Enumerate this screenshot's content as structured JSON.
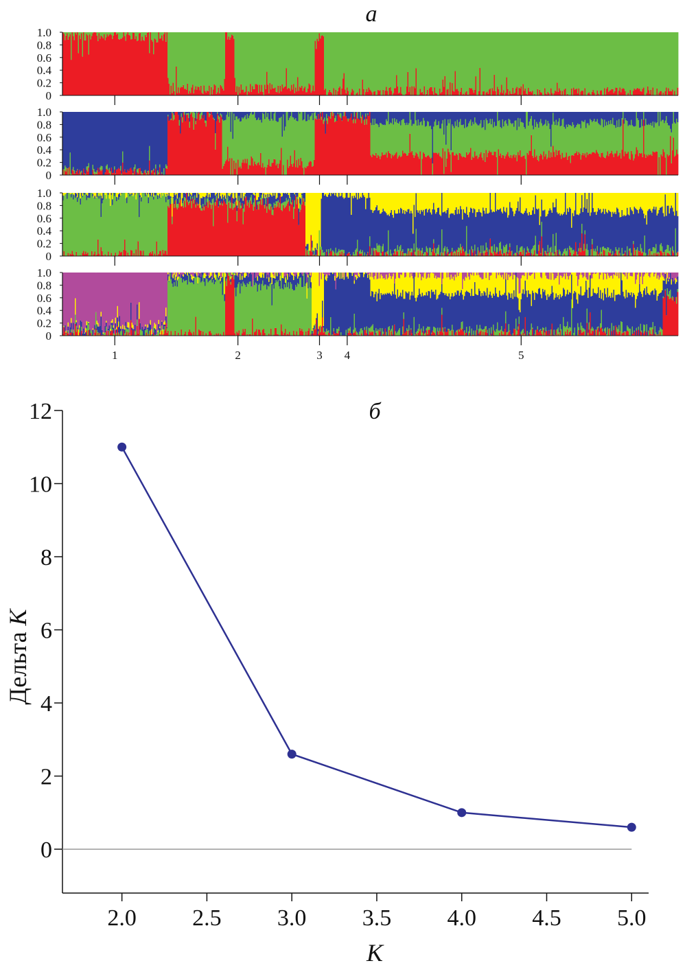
{
  "figure": {
    "panel_a_label": "а",
    "panel_b_label": "б"
  },
  "chart_data": [
    {
      "type": "bar",
      "subtype": "stacked-membership",
      "panel": "а",
      "y_ticks": [
        "1.0",
        "0.8",
        "0.6",
        "0.4",
        "0.2",
        "0"
      ],
      "ylim": [
        0,
        1
      ],
      "populations": [
        {
          "label": "1",
          "start": 0.0,
          "end": 0.17,
          "tick": 0.085
        },
        {
          "label": "2",
          "start": 0.17,
          "end": 0.41,
          "tick": 0.285
        },
        {
          "label": "3",
          "start": 0.41,
          "end": 0.425,
          "tick": 0.4175
        },
        {
          "label": "4",
          "start": 0.425,
          "end": 0.5,
          "tick": 0.4625
        },
        {
          "label": "5",
          "start": 0.5,
          "end": 1.0,
          "tick": 0.745
        }
      ],
      "rows": [
        {
          "K": 2,
          "segments": [
            {
              "start": 0.0,
              "end": 0.17,
              "values": [
                0.93,
                0.07
              ]
            },
            {
              "start": 0.17,
              "end": 0.265,
              "values": [
                0.1,
                0.9
              ]
            },
            {
              "start": 0.265,
              "end": 0.28,
              "values": [
                0.95,
                0.05
              ]
            },
            {
              "start": 0.28,
              "end": 0.41,
              "values": [
                0.12,
                0.88
              ]
            },
            {
              "start": 0.41,
              "end": 0.425,
              "values": [
                0.93,
                0.07
              ]
            },
            {
              "start": 0.425,
              "end": 1.0,
              "values": [
                0.06,
                0.94
              ]
            }
          ]
        },
        {
          "K": 3,
          "segments": [
            {
              "start": 0.0,
              "end": 0.17,
              "values": [
                0.04,
                0.02,
                0.94
              ]
            },
            {
              "start": 0.17,
              "end": 0.26,
              "values": [
                0.9,
                0.02,
                0.08
              ]
            },
            {
              "start": 0.26,
              "end": 0.41,
              "values": [
                0.18,
                0.74,
                0.08
              ]
            },
            {
              "start": 0.41,
              "end": 0.5,
              "values": [
                0.92,
                0.03,
                0.05
              ]
            },
            {
              "start": 0.5,
              "end": 1.0,
              "values": [
                0.32,
                0.5,
                0.18
              ]
            }
          ]
        },
        {
          "K": 4,
          "segments": [
            {
              "start": 0.0,
              "end": 0.17,
              "values": [
                0.02,
                0.94,
                0.02,
                0.02
              ]
            },
            {
              "start": 0.17,
              "end": 0.395,
              "values": [
                0.82,
                0.06,
                0.1,
                0.02
              ]
            },
            {
              "start": 0.395,
              "end": 0.42,
              "values": [
                0.02,
                0.05,
                0.05,
                0.88
              ]
            },
            {
              "start": 0.42,
              "end": 0.5,
              "values": [
                0.01,
                0.04,
                0.93,
                0.02
              ]
            },
            {
              "start": 0.5,
              "end": 1.0,
              "values": [
                0.02,
                0.06,
                0.62,
                0.3
              ]
            }
          ]
        },
        {
          "K": 5,
          "segments": [
            {
              "start": 0.0,
              "end": 0.17,
              "values": [
                0.02,
                0.02,
                0.04,
                0.02,
                0.9
              ]
            },
            {
              "start": 0.17,
              "end": 0.265,
              "values": [
                0.02,
                0.88,
                0.08,
                0.02,
                0.0
              ]
            },
            {
              "start": 0.265,
              "end": 0.28,
              "values": [
                0.9,
                0.05,
                0.05,
                0.0,
                0.0
              ]
            },
            {
              "start": 0.28,
              "end": 0.405,
              "values": [
                0.05,
                0.78,
                0.15,
                0.02,
                0.0
              ]
            },
            {
              "start": 0.405,
              "end": 0.425,
              "values": [
                0.02,
                0.03,
                0.05,
                0.9,
                0.0
              ]
            },
            {
              "start": 0.425,
              "end": 0.5,
              "values": [
                0.01,
                0.03,
                0.93,
                0.03,
                0.0
              ]
            },
            {
              "start": 0.5,
              "end": 0.975,
              "values": [
                0.03,
                0.05,
                0.58,
                0.3,
                0.04
              ]
            },
            {
              "start": 0.975,
              "end": 1.0,
              "values": [
                0.6,
                0.05,
                0.25,
                0.05,
                0.05
              ]
            }
          ]
        }
      ],
      "colors": {
        "red": "#ec1c24",
        "green": "#6cbe45",
        "blue": "#2e3d9c",
        "yellow": "#fff200",
        "magenta": "#b14b9c"
      },
      "color_order": {
        "2": [
          "red",
          "green"
        ],
        "3": [
          "red",
          "green",
          "blue"
        ],
        "4": [
          "red",
          "green",
          "blue",
          "yellow"
        ],
        "5": [
          "red",
          "green",
          "blue",
          "yellow",
          "magenta"
        ]
      }
    },
    {
      "type": "line",
      "panel": "б",
      "x": [
        2.0,
        3.0,
        4.0,
        5.0
      ],
      "y": [
        11.0,
        2.6,
        1.0,
        0.6
      ],
      "xlabel": "K",
      "ylabel_text": "Дельта ",
      "ylabel_var": "K",
      "xlim": [
        1.65,
        5.1
      ],
      "ylim": [
        -1.2,
        12
      ],
      "x_ticks": [
        "2.0",
        "2.5",
        "3.0",
        "3.5",
        "4.0",
        "4.5",
        "5.0"
      ],
      "y_ticks": [
        "0",
        "2",
        "4",
        "6",
        "8",
        "10",
        "12"
      ],
      "line_color": "#2e3192",
      "zero_line_color": "#9a9a9a",
      "grid": false
    }
  ]
}
